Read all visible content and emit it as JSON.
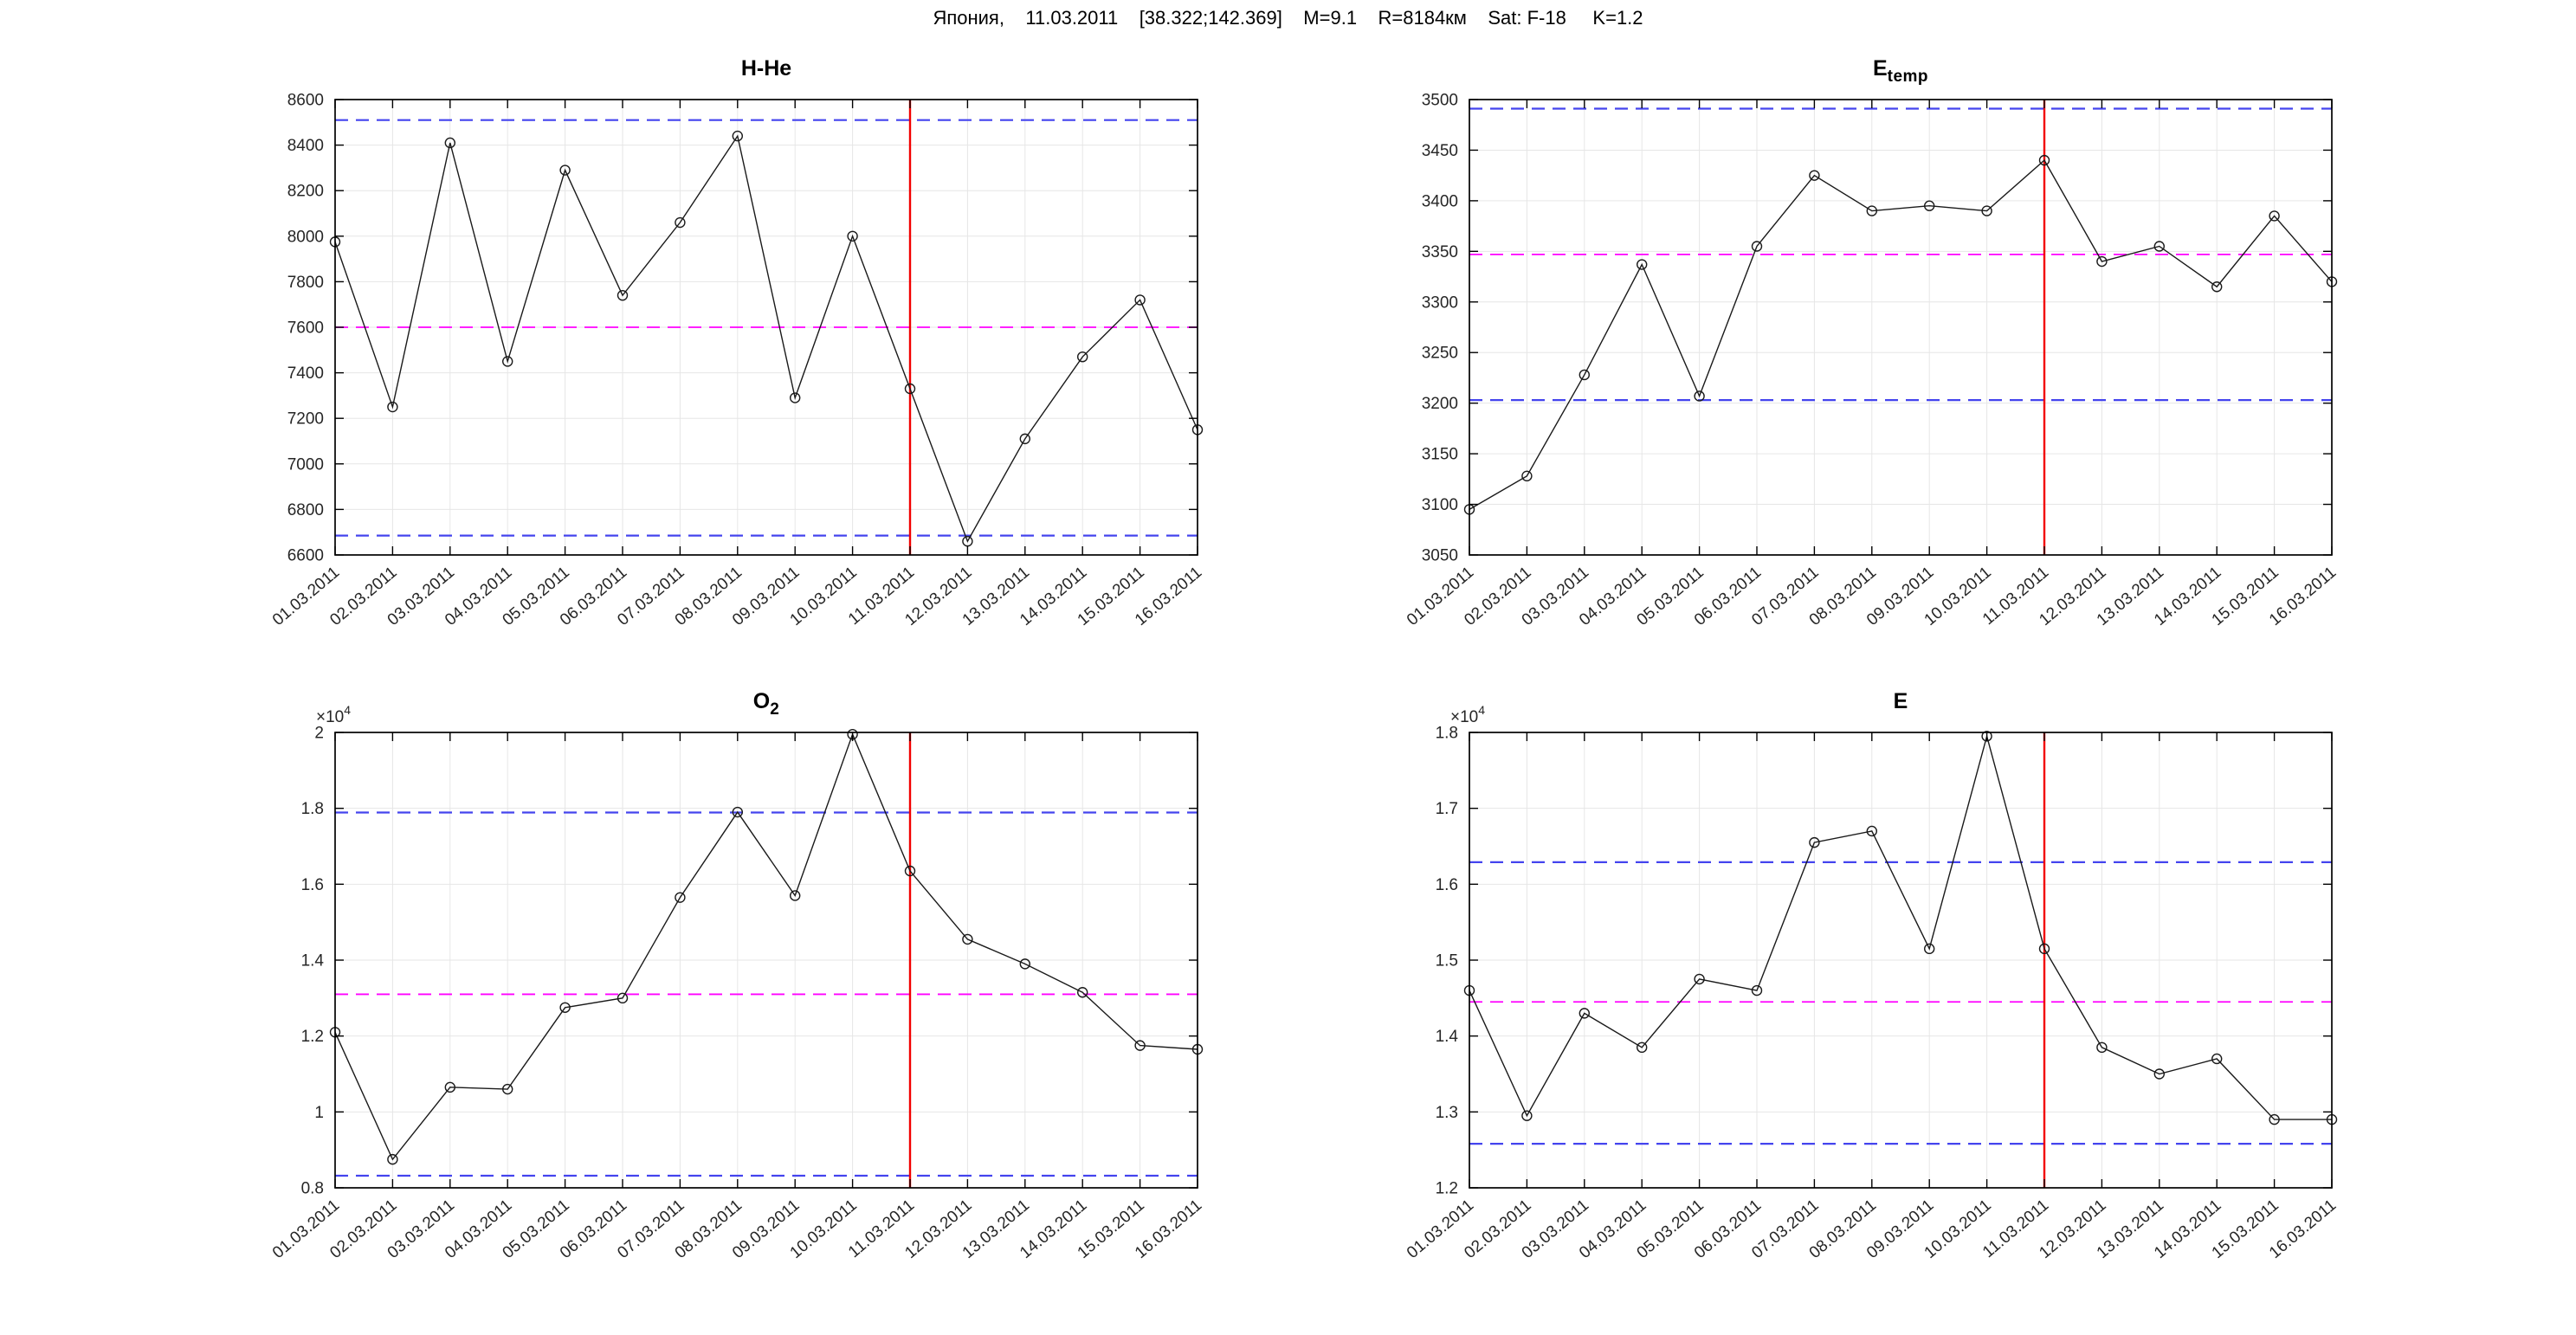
{
  "figure": {
    "title": "Япония,    11.03.2011    [38.322;142.369]    M=9.1    R=8184км    Sat: F-18     K=1.2"
  },
  "colors": {
    "bound_blue": "#4444ee",
    "mean_magenta": "#ff00ff",
    "event_red": "#f20000",
    "series_line": "#1a1a1a",
    "grid": "#e6e6e6",
    "tick_text": "#262626",
    "box": "#000000"
  },
  "event_date": "11.03.2011",
  "event_index": 10,
  "chart_data": [
    {
      "type": "line",
      "title_main": "H-He",
      "title_sub": "",
      "categories": [
        "01.03.2011",
        "02.03.2011",
        "03.03.2011",
        "04.03.2011",
        "05.03.2011",
        "06.03.2011",
        "07.03.2011",
        "08.03.2011",
        "09.03.2011",
        "10.03.2011",
        "11.03.2011",
        "12.03.2011",
        "13.03.2011",
        "14.03.2011",
        "15.03.2011",
        "16.03.2011"
      ],
      "values": [
        7975,
        7250,
        8410,
        7450,
        8290,
        7740,
        8060,
        8440,
        7290,
        8000,
        7330,
        6660,
        7110,
        7470,
        7720,
        7150
      ],
      "ylim": [
        6600,
        8600
      ],
      "ytick_values": [
        6600,
        6800,
        7000,
        7200,
        7400,
        7600,
        7800,
        8000,
        8200,
        8400,
        8600
      ],
      "ytick_labels": [
        "6600",
        "6800",
        "7000",
        "7200",
        "7400",
        "7600",
        "7800",
        "8000",
        "8200",
        "8400",
        "8600"
      ],
      "upper_bound": 8510,
      "mean_line": 7600,
      "lower_bound": 6685,
      "exponent_base": "",
      "exponent_sup": "",
      "grid": "on",
      "event_line_x": "11.03.2011"
    },
    {
      "type": "line",
      "title_main": "E",
      "title_sub": "temp",
      "categories": [
        "01.03.2011",
        "02.03.2011",
        "03.03.2011",
        "04.03.2011",
        "05.03.2011",
        "06.03.2011",
        "07.03.2011",
        "08.03.2011",
        "09.03.2011",
        "10.03.2011",
        "11.03.2011",
        "12.03.2011",
        "13.03.2011",
        "14.03.2011",
        "15.03.2011",
        "16.03.2011"
      ],
      "values": [
        3095,
        3128,
        3228,
        3337,
        3207,
        3355,
        3425,
        3390,
        3395,
        3390,
        3440,
        3340,
        3355,
        3315,
        3385,
        3320
      ],
      "ylim": [
        3050,
        3500
      ],
      "ytick_values": [
        3050,
        3100,
        3150,
        3200,
        3250,
        3300,
        3350,
        3400,
        3450,
        3500
      ],
      "ytick_labels": [
        "3050",
        "3100",
        "3150",
        "3200",
        "3250",
        "3300",
        "3350",
        "3400",
        "3450",
        "3500"
      ],
      "upper_bound": 3491,
      "mean_line": 3347,
      "lower_bound": 3203,
      "exponent_base": "",
      "exponent_sup": "",
      "grid": "on",
      "event_line_x": "11.03.2011"
    },
    {
      "type": "line",
      "title_main": "O",
      "title_sub": "2",
      "categories": [
        "01.03.2011",
        "02.03.2011",
        "03.03.2011",
        "04.03.2011",
        "05.03.2011",
        "06.03.2011",
        "07.03.2011",
        "08.03.2011",
        "09.03.2011",
        "10.03.2011",
        "11.03.2011",
        "12.03.2011",
        "13.03.2011",
        "14.03.2011",
        "15.03.2011",
        "16.03.2011"
      ],
      "values": [
        12100,
        8750,
        10650,
        10600,
        12750,
        13000,
        15650,
        17900,
        15700,
        19950,
        16350,
        14550,
        13900,
        13150,
        11750,
        11650
      ],
      "ylim": [
        8000,
        20000
      ],
      "ytick_values": [
        8000,
        10000,
        12000,
        14000,
        16000,
        18000,
        20000
      ],
      "ytick_labels": [
        "0.8",
        "1",
        "1.2",
        "1.4",
        "1.6",
        "1.8",
        "2"
      ],
      "upper_bound": 17890,
      "mean_line": 13100,
      "lower_bound": 8320,
      "exponent_base": "×10",
      "exponent_sup": "4",
      "grid": "on",
      "event_line_x": "11.03.2011"
    },
    {
      "type": "line",
      "title_main": "E",
      "title_sub": "",
      "categories": [
        "01.03.2011",
        "02.03.2011",
        "03.03.2011",
        "04.03.2011",
        "05.03.2011",
        "06.03.2011",
        "07.03.2011",
        "08.03.2011",
        "09.03.2011",
        "10.03.2011",
        "11.03.2011",
        "12.03.2011",
        "13.03.2011",
        "14.03.2011",
        "15.03.2011",
        "16.03.2011"
      ],
      "values": [
        14600,
        12950,
        14300,
        13850,
        14750,
        14600,
        16550,
        16700,
        15150,
        17950,
        15150,
        13850,
        13500,
        13700,
        12900,
        12900
      ],
      "ylim": [
        12000,
        18000
      ],
      "ytick_values": [
        12000,
        13000,
        14000,
        15000,
        16000,
        17000,
        18000
      ],
      "ytick_labels": [
        "1.2",
        "1.3",
        "1.4",
        "1.5",
        "1.6",
        "1.7",
        "1.8"
      ],
      "upper_bound": 16290,
      "mean_line": 14450,
      "lower_bound": 12580,
      "exponent_base": "×10",
      "exponent_sup": "4",
      "grid": "on",
      "event_line_x": "11.03.2011"
    }
  ]
}
